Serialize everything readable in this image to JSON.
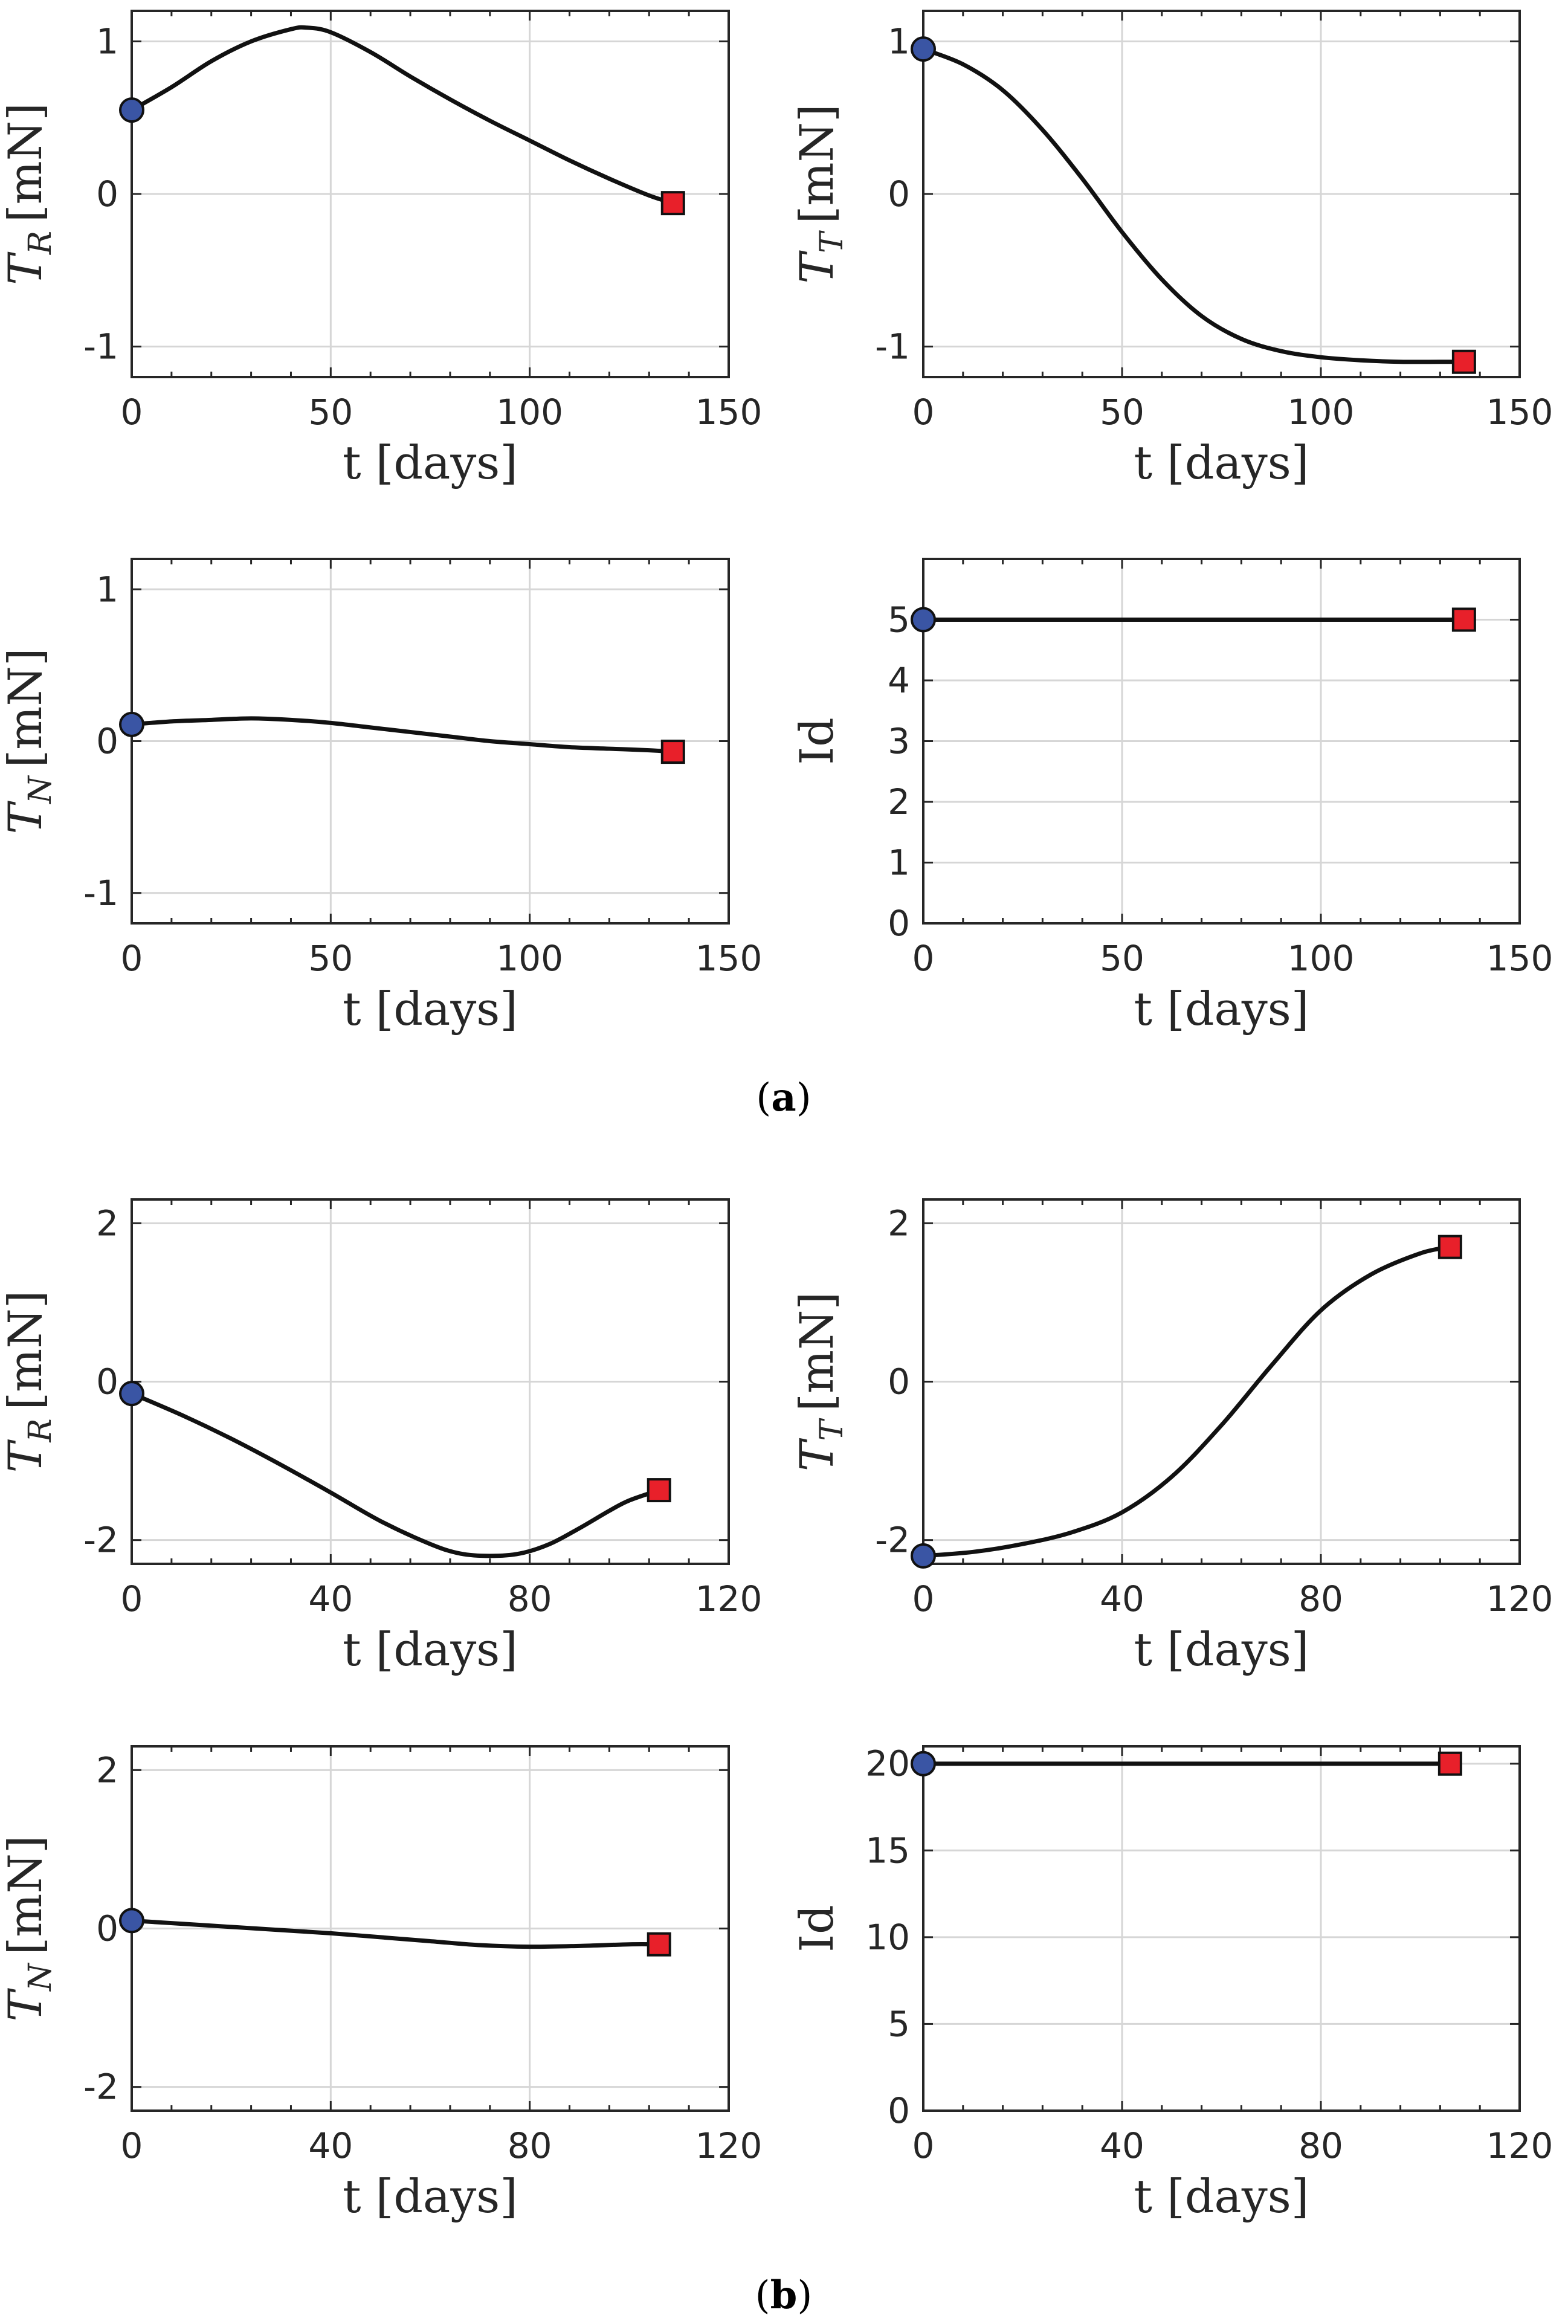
{
  "figure": {
    "caption_a": "a",
    "caption_b": "b"
  },
  "colors": {
    "start_marker": "#3a55a4",
    "end_marker": "#e8202a",
    "line": "#111111"
  },
  "chart_data": [
    {
      "id": "a-TR",
      "type": "line",
      "xlabel": "t [days]",
      "ylabel_main": "T",
      "ylabel_sub": "R",
      "ylabel_unit": "[mN]",
      "xlim": [
        0,
        150
      ],
      "xticks": [
        0,
        50,
        100,
        150
      ],
      "ylim": [
        -1.2,
        1.2
      ],
      "yticks": [
        -1,
        0,
        1
      ],
      "yticklabels": [
        "-1",
        "0",
        "1"
      ],
      "x": [
        0,
        10,
        20,
        30,
        40,
        44,
        50,
        60,
        70,
        80,
        90,
        100,
        110,
        120,
        130,
        136
      ],
      "y": [
        0.55,
        0.7,
        0.87,
        1.0,
        1.08,
        1.09,
        1.06,
        0.93,
        0.77,
        0.62,
        0.48,
        0.35,
        0.22,
        0.1,
        -0.01,
        -0.06
      ],
      "start": [
        0,
        0.55
      ],
      "end": [
        136,
        -0.06
      ]
    },
    {
      "id": "a-TT",
      "type": "line",
      "xlabel": "t [days]",
      "ylabel_main": "T",
      "ylabel_sub": "T",
      "ylabel_unit": "[mN]",
      "xlim": [
        0,
        150
      ],
      "xticks": [
        0,
        50,
        100,
        150
      ],
      "ylim": [
        -1.2,
        1.2
      ],
      "yticks": [
        -1,
        0,
        1
      ],
      "yticklabels": [
        "-1",
        "0",
        "1"
      ],
      "x": [
        0,
        10,
        20,
        30,
        40,
        50,
        60,
        70,
        80,
        90,
        100,
        110,
        120,
        130,
        136
      ],
      "y": [
        0.95,
        0.85,
        0.68,
        0.42,
        0.1,
        -0.25,
        -0.56,
        -0.8,
        -0.95,
        -1.03,
        -1.07,
        -1.09,
        -1.1,
        -1.1,
        -1.1
      ],
      "start": [
        0,
        0.95
      ],
      "end": [
        136,
        -1.1
      ]
    },
    {
      "id": "a-TN",
      "type": "line",
      "xlabel": "t [days]",
      "ylabel_main": "T",
      "ylabel_sub": "N",
      "ylabel_unit": "[mN]",
      "xlim": [
        0,
        150
      ],
      "xticks": [
        0,
        50,
        100,
        150
      ],
      "ylim": [
        -1.2,
        1.2
      ],
      "yticks": [
        -1,
        0,
        1
      ],
      "yticklabels": [
        "-1",
        "0",
        "1"
      ],
      "x": [
        0,
        10,
        20,
        30,
        40,
        50,
        60,
        70,
        80,
        90,
        100,
        110,
        120,
        130,
        136
      ],
      "y": [
        0.11,
        0.13,
        0.14,
        0.15,
        0.14,
        0.12,
        0.09,
        0.06,
        0.03,
        0.0,
        -0.02,
        -0.04,
        -0.05,
        -0.06,
        -0.07
      ],
      "start": [
        0,
        0.11
      ],
      "end": [
        136,
        -0.07
      ]
    },
    {
      "id": "a-Id",
      "type": "line",
      "xlabel": "t [days]",
      "ylabel_main": "Id",
      "ylabel_sub": "",
      "ylabel_unit": "",
      "xlim": [
        0,
        150
      ],
      "xticks": [
        0,
        50,
        100,
        150
      ],
      "ylim": [
        0,
        6
      ],
      "yticks": [
        0,
        1,
        2,
        3,
        4,
        5
      ],
      "yticklabels": [
        "0",
        "1",
        "2",
        "3",
        "4",
        "5"
      ],
      "x": [
        0,
        136
      ],
      "y": [
        5,
        5
      ],
      "start": [
        0,
        5
      ],
      "end": [
        136,
        5
      ]
    },
    {
      "id": "b-TR",
      "type": "line",
      "xlabel": "t [days]",
      "ylabel_main": "T",
      "ylabel_sub": "R",
      "ylabel_unit": "[mN]",
      "xlim": [
        0,
        120
      ],
      "xticks": [
        0,
        40,
        80,
        120
      ],
      "ylim": [
        -2.3,
        2.3
      ],
      "yticks": [
        -2,
        0,
        2
      ],
      "yticklabels": [
        "-2",
        "0",
        "2"
      ],
      "x": [
        0,
        10,
        20,
        30,
        40,
        50,
        60,
        66,
        72,
        78,
        84,
        90,
        96,
        100,
        106
      ],
      "y": [
        -0.15,
        -0.42,
        -0.72,
        -1.05,
        -1.4,
        -1.76,
        -2.05,
        -2.17,
        -2.2,
        -2.17,
        -2.05,
        -1.85,
        -1.63,
        -1.5,
        -1.37
      ],
      "start": [
        0,
        -0.15
      ],
      "end": [
        106,
        -1.37
      ]
    },
    {
      "id": "b-TT",
      "type": "line",
      "xlabel": "t [days]",
      "ylabel_main": "T",
      "ylabel_sub": "T",
      "ylabel_unit": "[mN]",
      "xlim": [
        0,
        120
      ],
      "xticks": [
        0,
        40,
        80,
        120
      ],
      "ylim": [
        -2.3,
        2.3
      ],
      "yticks": [
        -2,
        0,
        2
      ],
      "yticklabels": [
        "-2",
        "0",
        "2"
      ],
      "x": [
        0,
        10,
        20,
        30,
        40,
        50,
        60,
        70,
        80,
        90,
        100,
        106
      ],
      "y": [
        -2.2,
        -2.15,
        -2.05,
        -1.9,
        -1.65,
        -1.2,
        -0.55,
        0.2,
        0.9,
        1.35,
        1.62,
        1.7
      ],
      "start": [
        0,
        -2.2
      ],
      "end": [
        106,
        1.7
      ]
    },
    {
      "id": "b-TN",
      "type": "line",
      "xlabel": "t [days]",
      "ylabel_main": "T",
      "ylabel_sub": "N",
      "ylabel_unit": "[mN]",
      "xlim": [
        0,
        120
      ],
      "xticks": [
        0,
        40,
        80,
        120
      ],
      "ylim": [
        -2.3,
        2.3
      ],
      "yticks": [
        -2,
        0,
        2
      ],
      "yticklabels": [
        "-2",
        "0",
        "2"
      ],
      "x": [
        0,
        10,
        20,
        30,
        40,
        50,
        60,
        70,
        80,
        90,
        100,
        106
      ],
      "y": [
        0.1,
        0.06,
        0.02,
        -0.02,
        -0.06,
        -0.11,
        -0.16,
        -0.21,
        -0.23,
        -0.22,
        -0.2,
        -0.2
      ],
      "start": [
        0,
        0.1
      ],
      "end": [
        106,
        -0.2
      ]
    },
    {
      "id": "b-Id",
      "type": "line",
      "xlabel": "t [days]",
      "ylabel_main": "Id",
      "ylabel_sub": "",
      "ylabel_unit": "",
      "xlim": [
        0,
        120
      ],
      "xticks": [
        0,
        40,
        80,
        120
      ],
      "ylim": [
        0,
        21
      ],
      "yticks": [
        0,
        5,
        10,
        15,
        20
      ],
      "yticklabels": [
        "0",
        "5",
        "10",
        "15",
        "20"
      ],
      "x": [
        0,
        106
      ],
      "y": [
        20,
        20
      ],
      "start": [
        0,
        20
      ],
      "end": [
        106,
        20
      ]
    }
  ]
}
